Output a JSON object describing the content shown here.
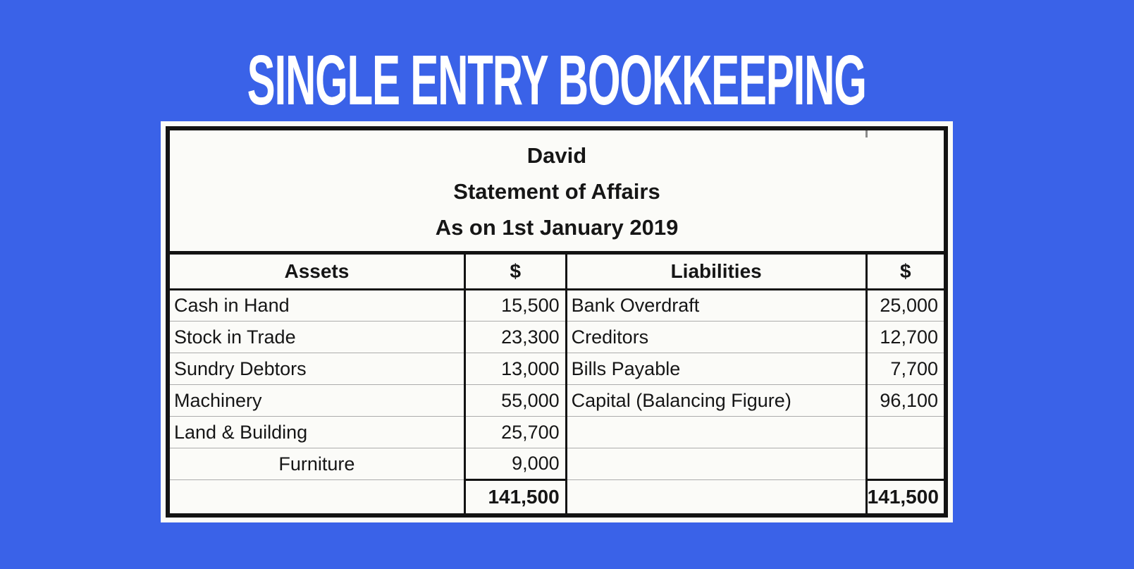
{
  "colors": {
    "background": "#3A62E8",
    "paper": "#FBFBF8",
    "ink": "#161616",
    "border_dark": "#131313",
    "grid_light": "#ACACAC",
    "title_color": "#FFFFFF"
  },
  "page_title": "SINGLE ENTRY BOOKKEEPING",
  "statement": {
    "entity": "David",
    "title": "Statement of Affairs",
    "date_line": "As on 1st January 2019",
    "columns": [
      "Assets",
      "$",
      "Liabilities",
      "$"
    ],
    "rows": [
      {
        "asset": "Cash in Hand",
        "asset_amount": "15,500",
        "liability": "Bank Overdraft",
        "liability_amount": "25,000"
      },
      {
        "asset": "Stock in Trade",
        "asset_amount": "23,300",
        "liability": "Creditors",
        "liability_amount": "12,700"
      },
      {
        "asset": "Sundry Debtors",
        "asset_amount": "13,000",
        "liability": "Bills Payable",
        "liability_amount": "7,700"
      },
      {
        "asset": "Machinery",
        "asset_amount": "55,000",
        "liability": "Capital (Balancing Figure)",
        "liability_amount": "96,100"
      },
      {
        "asset": "Land & Building",
        "asset_amount": "25,700",
        "liability": "",
        "liability_amount": ""
      },
      {
        "asset": "Furniture",
        "asset_amount": "9,000",
        "liability": "",
        "liability_amount": ""
      }
    ],
    "totals": {
      "asset_total": "141,500",
      "liability_total": "141,500"
    }
  }
}
